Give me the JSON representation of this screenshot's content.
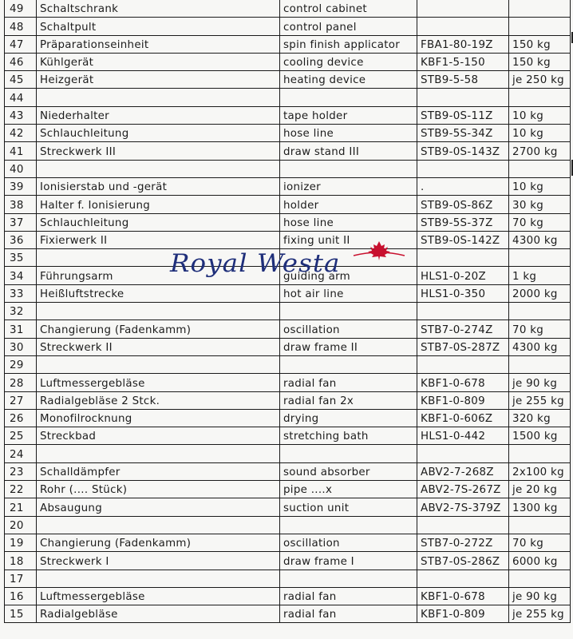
{
  "table": {
    "rows": [
      [
        "49",
        "Schaltschrank",
        "control cabinet",
        "",
        ""
      ],
      [
        "48",
        "Schaltpult",
        "control panel",
        "",
        ""
      ],
      [
        "47",
        "Präparationseinheit",
        "spin finish applicator",
        "FBA1-80-19Z",
        "150 kg"
      ],
      [
        "46",
        "Kühlgerät",
        "cooling device",
        "KBF1-5-150",
        "150 kg"
      ],
      [
        "45",
        "Heizgerät",
        "heating device",
        "STB9-5-58",
        "je 250 kg"
      ],
      [
        "44",
        "",
        "",
        "",
        ""
      ],
      [
        "43",
        "Niederhalter",
        "tape holder",
        "STB9-0S-11Z",
        "10 kg"
      ],
      [
        "42",
        "Schlauchleitung",
        "hose line",
        "STB9-5S-34Z",
        "10 kg"
      ],
      [
        "41",
        "Streckwerk III",
        "draw stand III",
        "STB9-0S-143Z",
        "2700 kg"
      ],
      [
        "40",
        "",
        "",
        "",
        ""
      ],
      [
        "39",
        "Ionisierstab und -gerät",
        "ionizer",
        ".",
        "10 kg"
      ],
      [
        "38",
        "Halter f. Ionisierung",
        "holder",
        "STB9-0S-86Z",
        "30 kg"
      ],
      [
        "37",
        "Schlauchleitung",
        "hose line",
        "STB9-5S-37Z",
        "70 kg"
      ],
      [
        "36",
        "Fixierwerk II",
        "fixing unit II",
        "STB9-0S-142Z",
        "4300 kg"
      ],
      [
        "35",
        "",
        "",
        "",
        ""
      ],
      [
        "34",
        "Führungsarm",
        "guiding arm",
        "HLS1-0-20Z",
        "1 kg"
      ],
      [
        "33",
        "Heißluftstrecke",
        "hot air line",
        "HLS1-0-350",
        "2000 kg"
      ],
      [
        "32",
        "",
        "",
        "",
        ""
      ],
      [
        "31",
        "Changierung (Fadenkamm)",
        "oscillation",
        "STB7-0-274Z",
        "70 kg"
      ],
      [
        "30",
        "Streckwerk II",
        "draw frame II",
        "STB7-0S-287Z",
        "4300 kg"
      ],
      [
        "29",
        "",
        "",
        "",
        ""
      ],
      [
        "28",
        "Luftmessergebläse",
        "radial fan",
        "KBF1-0-678",
        "je 90 kg"
      ],
      [
        "27",
        "Radialgebläse 2 Stck.",
        "radial fan 2x",
        "KBF1-0-809",
        "je 255 kg"
      ],
      [
        "26",
        "Monofilrocknung",
        "drying",
        "KBF1-0-606Z",
        "320 kg"
      ],
      [
        "25",
        "Streckbad",
        "stretching bath",
        "HLS1-0-442",
        "1500 kg"
      ],
      [
        "24",
        "",
        "",
        "",
        ""
      ],
      [
        "23",
        "Schalldämpfer",
        "sound absorber",
        "ABV2-7-268Z",
        "2x100 kg"
      ],
      [
        "22",
        "Rohr   (.... Stück)",
        "pipe    ....x",
        "ABV2-7S-267Z",
        "je 20 kg"
      ],
      [
        "21",
        "Absaugung",
        "suction unit",
        "ABV2-7S-379Z",
        "1300 kg"
      ],
      [
        "20",
        "",
        "",
        "",
        ""
      ],
      [
        "19",
        "Changierung (Fadenkamm)",
        "oscillation",
        "STB7-0-272Z",
        "70 kg"
      ],
      [
        "18",
        "Streckwerk I",
        "draw frame I",
        "STB7-0S-286Z",
        "6000 kg"
      ],
      [
        "17",
        "",
        "",
        "",
        ""
      ],
      [
        "16",
        "Luftmessergebläse",
        "radial fan",
        "KBF1-0-678",
        "je 90 kg"
      ],
      [
        "15",
        "Radialgebläse",
        "radial fan",
        "KBF1-0-809",
        "je 255 kg"
      ]
    ]
  },
  "watermark": {
    "text": "Royal Westa",
    "text_color": "#1f2f7a",
    "leaf_color": "#c8102e",
    "icon": "maple-leaf-icon"
  }
}
